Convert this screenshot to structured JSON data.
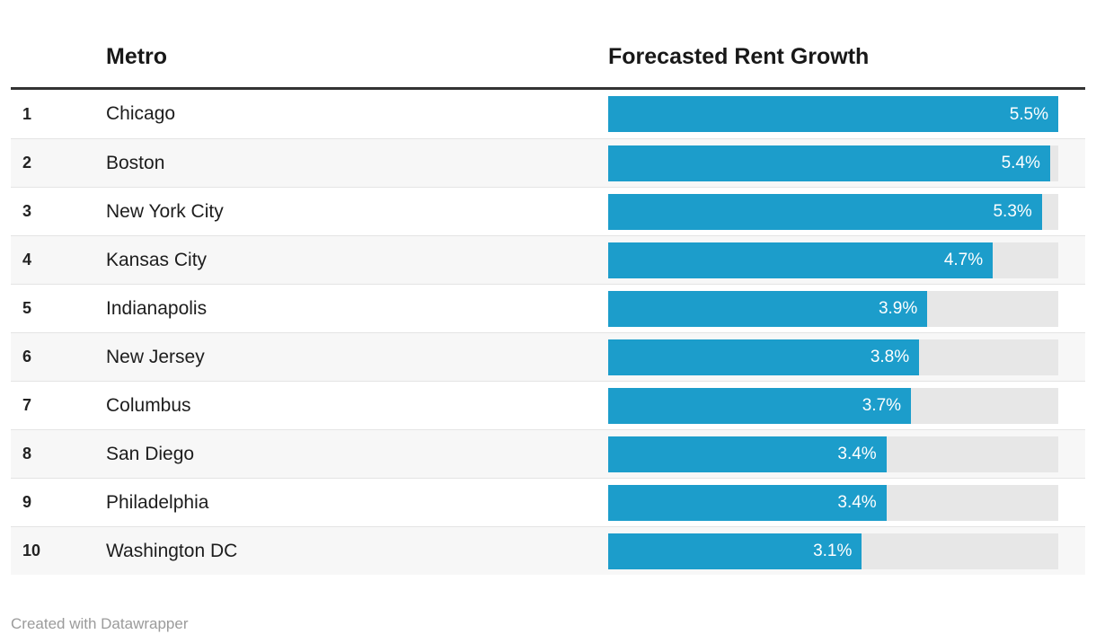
{
  "header": {
    "columns": [
      "Metro",
      "Forecasted Rent Growth"
    ]
  },
  "table": {
    "rows": [
      {
        "rank": "1",
        "metro": "Chicago",
        "value": 5.5,
        "label": "5.5%"
      },
      {
        "rank": "2",
        "metro": "Boston",
        "value": 5.4,
        "label": "5.4%"
      },
      {
        "rank": "3",
        "metro": "New York City",
        "value": 5.3,
        "label": "5.3%"
      },
      {
        "rank": "4",
        "metro": "Kansas City",
        "value": 4.7,
        "label": "4.7%"
      },
      {
        "rank": "5",
        "metro": "Indianapolis",
        "value": 3.9,
        "label": "3.9%"
      },
      {
        "rank": "6",
        "metro": "New Jersey",
        "value": 3.8,
        "label": "3.8%"
      },
      {
        "rank": "7",
        "metro": "Columbus",
        "value": 3.7,
        "label": "3.7%"
      },
      {
        "rank": "8",
        "metro": "San Diego",
        "value": 3.4,
        "label": "3.4%"
      },
      {
        "rank": "9",
        "metro": "Philadelphia",
        "value": 3.4,
        "label": "3.4%"
      },
      {
        "rank": "10",
        "metro": "Washington DC",
        "value": 3.1,
        "label": "3.1%"
      }
    ]
  },
  "footer": {
    "credit": "Created with Datawrapper"
  },
  "colors": {
    "bar": "#1c9dcb",
    "bar_track": "#e7e7e7",
    "row_alt_background": "#f7f7f7",
    "header_rule": "#333333",
    "row_separator": "#e4e4e4",
    "header_text": "#181818",
    "body_text": "#1d1d1d",
    "bar_label_text": "#ffffff",
    "footer_text": "#9b9b9b"
  },
  "chart_data": {
    "type": "bar",
    "orientation": "horizontal",
    "title": "",
    "columns": [
      "Metro",
      "Forecasted Rent Growth"
    ],
    "categories": [
      "Chicago",
      "Boston",
      "New York City",
      "Kansas City",
      "Indianapolis",
      "New Jersey",
      "Columbus",
      "San Diego",
      "Philadelphia",
      "Washington DC"
    ],
    "ranks": [
      1,
      2,
      3,
      4,
      5,
      6,
      7,
      8,
      9,
      10
    ],
    "values": [
      5.5,
      5.4,
      5.3,
      4.7,
      3.9,
      3.8,
      3.7,
      3.4,
      3.4,
      3.1
    ],
    "value_labels": [
      "5.5%",
      "5.4%",
      "5.3%",
      "4.7%",
      "3.9%",
      "3.8%",
      "3.7%",
      "3.4%",
      "3.4%",
      "3.1%"
    ],
    "xlim": [
      0,
      5.5
    ],
    "grid": false,
    "legend": false,
    "attribution": "Created with Datawrapper"
  }
}
